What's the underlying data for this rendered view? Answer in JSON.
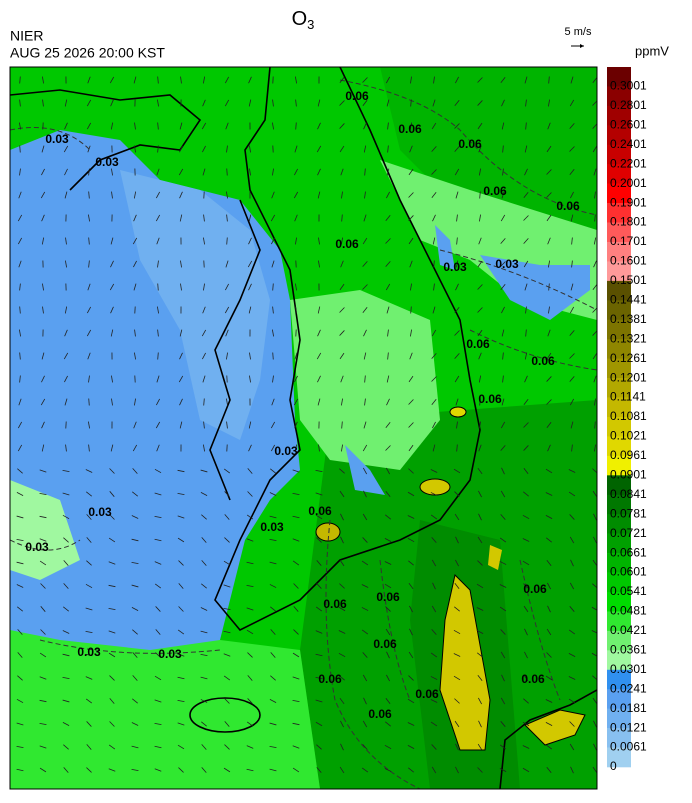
{
  "header": {
    "title": "O",
    "title_subscript": "3",
    "agency": "NIER",
    "timestamp": "AUG 25 2026 20:00 KST"
  },
  "wind_scale": {
    "label": "5 m/s"
  },
  "colorbar": {
    "unit": "ppmV",
    "labels": [
      0.3001,
      0.2801,
      0.2601,
      0.2401,
      0.2201,
      0.2001,
      0.1901,
      0.1801,
      0.1701,
      0.1601,
      0.1501,
      0.1441,
      0.1381,
      0.1321,
      0.1261,
      0.1201,
      0.1141,
      0.1081,
      0.1021,
      0.0961,
      0.0901,
      0.0841,
      0.0781,
      0.0721,
      0.0661,
      0.0601,
      0.0541,
      0.0481,
      0.0421,
      0.0361,
      0.0301,
      0.0241,
      0.0181,
      0.0121,
      0.0061,
      0
    ],
    "colors": [
      "#6b0000",
      "#8b0000",
      "#a00000",
      "#b40000",
      "#c80000",
      "#e00000",
      "#ff0000",
      "#ff3030",
      "#ff5a5a",
      "#ff8080",
      "#ff9a9a",
      "#5a5000",
      "#6b6400",
      "#7d7400",
      "#8f8600",
      "#a09600",
      "#b2a800",
      "#c4b800",
      "#d2c800",
      "#e0d800",
      "#f0f000",
      "#006400",
      "#007800",
      "#008c00",
      "#00a000",
      "#00b400",
      "#00c800",
      "#00dc00",
      "#30e830",
      "#70f070",
      "#a0f8a0",
      "#3090f0",
      "#5aa0f0",
      "#70b0f0",
      "#88c0f0",
      "#a0d0f0"
    ]
  },
  "contour_labels": [
    0.03,
    0.03,
    0.03,
    0.03,
    0.03,
    0.03,
    0.03,
    0.03,
    0.03,
    0.03,
    0.06,
    0.06,
    0.06,
    0.06,
    0.06,
    0.06,
    0.06,
    0.06,
    0.06,
    0.06,
    0.06,
    0.06,
    0.06,
    0.06,
    0.06,
    0.06,
    0.06,
    0.06
  ]
}
